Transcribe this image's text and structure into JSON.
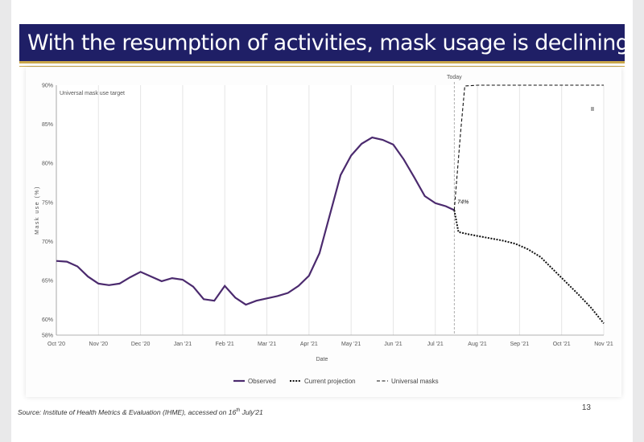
{
  "slide": {
    "title": "With the resumption of activities, mask usage is declining",
    "page_number": "13",
    "source_prefix": "Source: Institute of Health Metrics & Evaluation (IHME), accessed on 16",
    "source_sup": "th",
    "source_suffix": " July'21",
    "colors": {
      "title_bg": "#1f1f66",
      "accent": "#c9a64a",
      "observed": "#4b2a6e",
      "projection": "#111111"
    }
  },
  "chart_data": {
    "type": "line",
    "ylabel": "Mask use (%)",
    "xlabel": "Date",
    "ylim": [
      58,
      90
    ],
    "yticks": [
      58,
      60,
      65,
      70,
      75,
      80,
      85,
      90
    ],
    "ytick_labels": [
      "58%",
      "60%",
      "65%",
      "70%",
      "75%",
      "80%",
      "85%",
      "90%"
    ],
    "x_domain": [
      0,
      13
    ],
    "xticks": [
      0,
      1,
      2,
      3,
      4,
      5,
      6,
      7,
      8,
      9,
      10,
      11,
      12,
      13
    ],
    "xtick_labels": [
      "Oct '20",
      "Nov '20",
      "Dec '20",
      "Jan '21",
      "Feb '21",
      "Mar '21",
      "Apr '21",
      "May '21",
      "Jun '21",
      "Jul '21",
      "Aug '21",
      "Sep '21",
      "Oct '21",
      "Nov '21"
    ],
    "today_x": 9.45,
    "today_label": "Today",
    "target_label": "Universal mask use target",
    "annotation": "74%",
    "side_mark": "II",
    "legend": [
      "Observed",
      "Current projection",
      "Universal masks"
    ],
    "series": [
      {
        "name": "Observed",
        "style": "solid",
        "x": [
          0,
          0.25,
          0.5,
          0.75,
          1.0,
          1.25,
          1.5,
          1.75,
          2.0,
          2.25,
          2.5,
          2.75,
          3.0,
          3.25,
          3.5,
          3.75,
          4.0,
          4.25,
          4.5,
          4.75,
          5.0,
          5.25,
          5.5,
          5.75,
          6.0,
          6.25,
          6.5,
          6.75,
          7.0,
          7.25,
          7.5,
          7.75,
          8.0,
          8.25,
          8.5,
          8.75,
          9.0,
          9.25,
          9.45
        ],
        "values": [
          67.5,
          67.4,
          66.8,
          65.5,
          64.6,
          64.4,
          64.6,
          65.4,
          66.1,
          65.5,
          64.9,
          65.3,
          65.1,
          64.2,
          62.6,
          62.4,
          64.3,
          62.8,
          61.9,
          62.4,
          62.7,
          63.0,
          63.4,
          64.3,
          65.6,
          68.5,
          73.5,
          78.5,
          81.0,
          82.5,
          83.3,
          83.0,
          82.4,
          80.5,
          78.2,
          75.8,
          74.9,
          74.5,
          74.0
        ]
      },
      {
        "name": "Current projection",
        "style": "dotted",
        "x": [
          9.45,
          9.55,
          9.8,
          10.0,
          10.3,
          10.6,
          10.9,
          11.2,
          11.5,
          11.8,
          12.1,
          12.4,
          12.7,
          13.0
        ],
        "values": [
          74.0,
          71.2,
          70.9,
          70.7,
          70.4,
          70.1,
          69.7,
          69.0,
          68.0,
          66.4,
          64.8,
          63.2,
          61.5,
          59.5
        ]
      },
      {
        "name": "Universal masks",
        "style": "dashed",
        "x": [
          9.45,
          9.6,
          9.7,
          10.0,
          13.0
        ],
        "values": [
          74.0,
          84.0,
          89.9,
          90.0,
          90.0
        ]
      }
    ]
  }
}
